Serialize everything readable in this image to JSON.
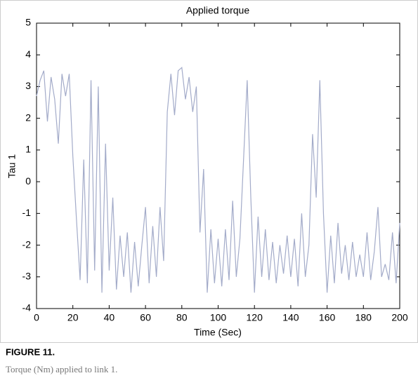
{
  "chart_data": {
    "type": "line",
    "title": "Applied torque",
    "xlabel": "Time (Sec)",
    "ylabel": "Tau 1",
    "x": [
      0,
      2,
      4,
      6,
      8,
      10,
      12,
      14,
      16,
      18,
      20,
      22,
      24,
      26,
      28,
      30,
      32,
      34,
      36,
      38,
      40,
      42,
      44,
      46,
      48,
      50,
      52,
      54,
      56,
      58,
      60,
      62,
      64,
      66,
      68,
      70,
      72,
      74,
      76,
      78,
      80,
      82,
      84,
      86,
      88,
      90,
      92,
      94,
      96,
      98,
      100,
      102,
      104,
      106,
      108,
      110,
      112,
      114,
      116,
      118,
      120,
      122,
      124,
      126,
      128,
      130,
      132,
      134,
      136,
      138,
      140,
      142,
      144,
      146,
      148,
      150,
      152,
      154,
      156,
      158,
      160,
      162,
      164,
      166,
      168,
      170,
      172,
      174,
      176,
      178,
      180,
      182,
      184,
      186,
      188,
      190,
      192,
      194,
      196,
      198,
      200
    ],
    "series": [
      {
        "name": "Tau 1",
        "color": "#a3abc9",
        "values": [
          2.7,
          3.2,
          3.5,
          1.9,
          3.3,
          2.6,
          1.2,
          3.4,
          2.7,
          3.4,
          0.8,
          -1.2,
          -3.1,
          0.7,
          -3.2,
          3.2,
          -2.8,
          3.0,
          -3.5,
          1.2,
          -2.8,
          -0.5,
          -3.4,
          -1.7,
          -3.0,
          -1.6,
          -3.5,
          -1.9,
          -3.3,
          -2.0,
          -0.8,
          -3.2,
          -1.4,
          -3.0,
          -0.8,
          -2.5,
          2.2,
          3.4,
          2.1,
          3.5,
          3.6,
          2.6,
          3.3,
          2.2,
          3.0,
          -1.6,
          0.4,
          -3.5,
          -1.5,
          -3.2,
          -1.8,
          -3.3,
          -1.5,
          -3.1,
          -0.6,
          -3.0,
          -1.8,
          0.7,
          3.2,
          -0.5,
          -3.5,
          -1.1,
          -3.0,
          -1.5,
          -3.1,
          -1.9,
          -3.2,
          -2.0,
          -2.9,
          -1.7,
          -3.0,
          -1.8,
          -3.3,
          -1.0,
          -3.0,
          -2.0,
          1.5,
          -0.5,
          3.2,
          -1.0,
          -3.5,
          -1.7,
          -3.2,
          -1.3,
          -2.9,
          -2.0,
          -3.1,
          -1.9,
          -3.0,
          -2.3,
          -3.0,
          -1.6,
          -3.1,
          -2.2,
          -0.8,
          -3.0,
          -2.6,
          -3.1,
          -1.6,
          -3.2,
          -1.3
        ]
      }
    ],
    "xlim": [
      0,
      200
    ],
    "xticks": [
      0,
      20,
      40,
      60,
      80,
      100,
      120,
      140,
      160,
      180,
      200
    ],
    "ylim": [
      -4,
      5
    ],
    "yticks": [
      -4,
      -3,
      -2,
      -1,
      0,
      1,
      2,
      3,
      4,
      5
    ]
  },
  "caption": {
    "label": "FIGURE 11.",
    "text": "Torque (Nm) applied to link 1."
  }
}
